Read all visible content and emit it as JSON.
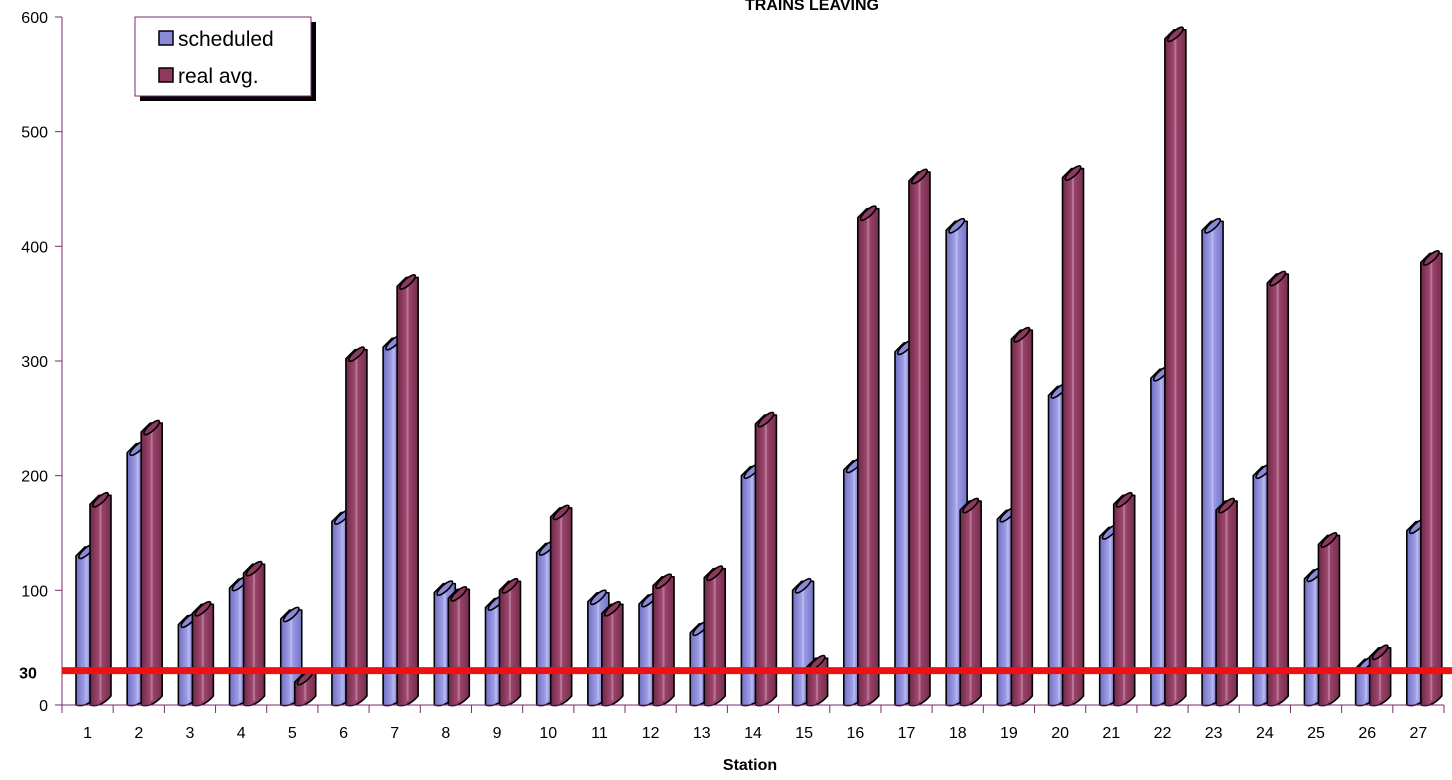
{
  "chart_data": {
    "type": "bar",
    "title": "TRAINS LEAVING",
    "xlabel": "Station",
    "ylabel": "",
    "ylim": [
      0,
      600
    ],
    "yticks": [
      0,
      100,
      200,
      300,
      400,
      500,
      600
    ],
    "categories": [
      "1",
      "2",
      "3",
      "4",
      "5",
      "6",
      "7",
      "8",
      "9",
      "10",
      "11",
      "12",
      "13",
      "14",
      "15",
      "16",
      "17",
      "18",
      "19",
      "20",
      "21",
      "22",
      "23",
      "24",
      "25",
      "26",
      "27"
    ],
    "series": [
      {
        "name": "scheduled",
        "color": "#8a8ad8",
        "values": [
          130,
          220,
          70,
          102,
          75,
          160,
          312,
          98,
          85,
          133,
          90,
          88,
          63,
          200,
          100,
          205,
          308,
          414,
          162,
          270,
          147,
          285,
          414,
          200,
          110,
          32,
          152
        ]
      },
      {
        "name": "real avg.",
        "color": "#8e3a5e",
        "values": [
          175,
          238,
          80,
          115,
          20,
          302,
          365,
          93,
          100,
          164,
          80,
          104,
          111,
          245,
          33,
          425,
          457,
          170,
          319,
          460,
          175,
          581,
          170,
          368,
          140,
          42,
          386
        ]
      }
    ],
    "reference_line": {
      "value": 30,
      "label": "30",
      "color": "#ee1111"
    },
    "legend_position": "top-left",
    "grid": false
  }
}
